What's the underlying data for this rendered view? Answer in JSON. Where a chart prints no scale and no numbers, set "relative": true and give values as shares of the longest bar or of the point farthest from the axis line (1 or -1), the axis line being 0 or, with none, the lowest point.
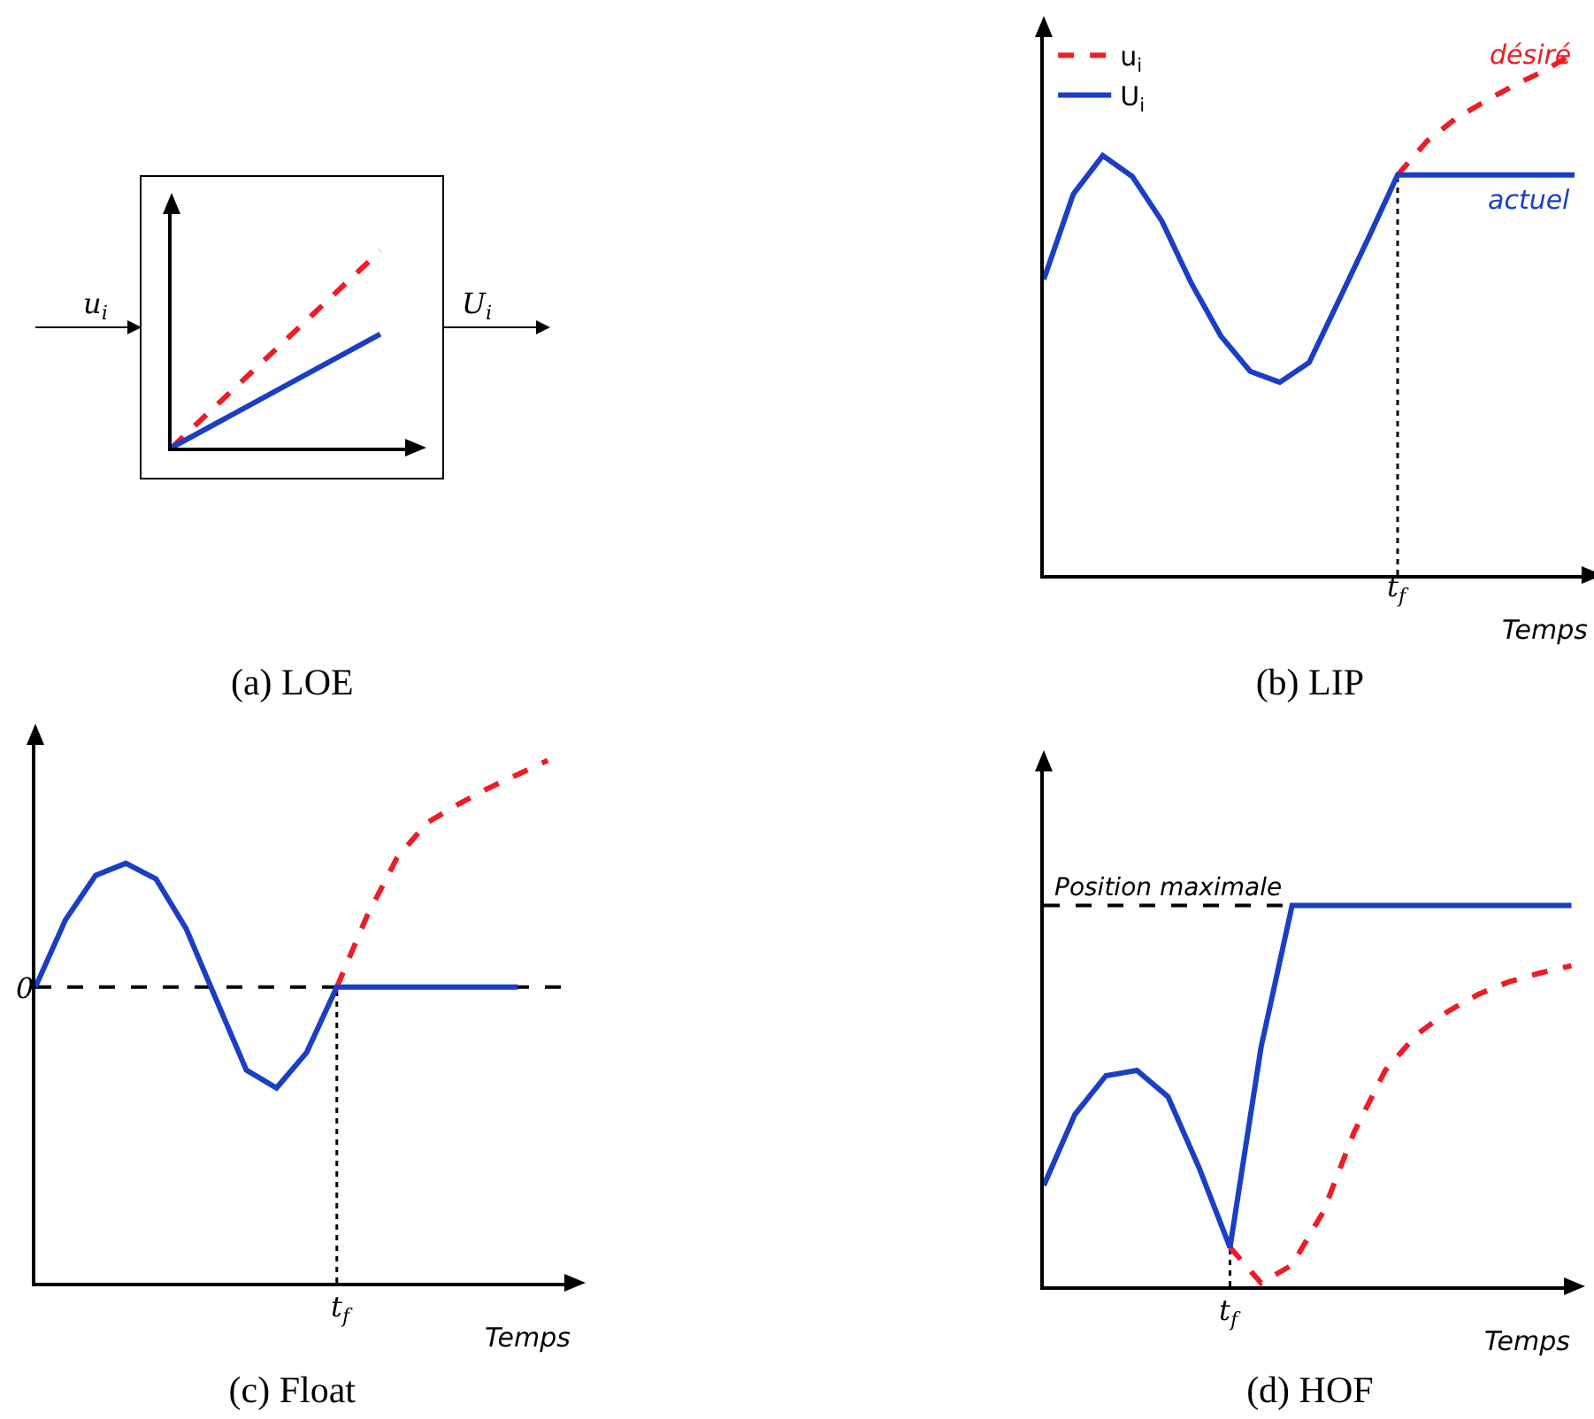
{
  "chart_data": [
    {
      "type": "line",
      "title": "(a) LOE",
      "relative": true,
      "categories": [
        null,
        null
      ],
      "annotations": [
        "u$_{i}$",
        "U$_{i}$"
      ],
      "series": [
        {
          "color": "#ee1c25",
          "line_style": "dashed",
          "values": [
            0,
            1
          ]
        },
        {
          "color": "#1a3fc4",
          "line_style": "solid",
          "values": [
            0,
            0.577
          ]
        }
      ]
    },
    {
      "type": "line",
      "title": "(b) LIP",
      "relative": true,
      "xlabel": "Temps",
      "legend": "top left",
      "categories": [
        null,
        null,
        null,
        null,
        null,
        null,
        null,
        null,
        null,
        null,
        null,
        null,
        null,
        null,
        null,
        null,
        null,
        null,
        null
      ],
      "annotations": [
        {
          "text": "désiré",
          "y": 0.95
        },
        {
          "text": "actuel",
          "y": 0.766
        },
        "t$_{f}$"
      ],
      "series": [
        {
          "name": "u$_{i}$",
          "color": "#ee1c25",
          "line_style": "dashed",
          "values": [
            null,
            null,
            null,
            null,
            null,
            null,
            null,
            null,
            null,
            null,
            null,
            null,
            0.766,
            0.831,
            0.875,
            0.908,
            0.939,
            0.966,
            1
          ]
        },
        {
          "name": "U$_{i}$",
          "color": "#1a3fc4",
          "line_style": "solid",
          "values": [
            0.566,
            0.729,
            0.803,
            0.763,
            0.678,
            0.559,
            0.458,
            0.39,
            0.369,
            0.407,
            0.525,
            0.644,
            0.766,
            0.766,
            0.766,
            0.766,
            0.766,
            0.766,
            0.766
          ]
        }
      ]
    },
    {
      "type": "line",
      "title": "(c) Float",
      "relative": true,
      "xlabel": "Temps",
      "categories": [
        null,
        null,
        null,
        null,
        null,
        null,
        null,
        null,
        null,
        null,
        null,
        null,
        null,
        null,
        null,
        null,
        null,
        null
      ],
      "annotations": [
        "0",
        "t$_{f}$"
      ],
      "ref_lines": [
        {
          "axis": "y",
          "value": 0.566,
          "line_style": "dashed",
          "color": "#000000"
        }
      ],
      "series": [
        {
          "color": "#ee1c25",
          "line_style": "dashed",
          "values": [
            null,
            null,
            null,
            null,
            null,
            null,
            null,
            null,
            null,
            null,
            0.566,
            0.702,
            0.814,
            0.881,
            0.915,
            0.946,
            0.973,
            1
          ]
        },
        {
          "color": "#1a3fc4",
          "line_style": "solid",
          "values": [
            0.566,
            0.695,
            0.78,
            0.803,
            0.773,
            0.678,
            0.542,
            0.407,
            0.373,
            0.441,
            0.566,
            0.566,
            0.566,
            0.566,
            0.566,
            0.566,
            0.566,
            null
          ]
        }
      ]
    },
    {
      "type": "line",
      "title": "(d) HOF",
      "relative": true,
      "xlabel": "Temps",
      "categories": [
        null,
        null,
        null,
        null,
        null,
        null,
        null,
        null,
        null,
        null,
        null,
        null,
        null,
        null,
        null,
        null,
        null,
        null
      ],
      "annotations": [
        "t$_{f}$"
      ],
      "ref_lines": [
        {
          "axis": "y",
          "value": 1,
          "label": "Position maximale",
          "line_style": "dashed",
          "color": "#000000"
        }
      ],
      "series": [
        {
          "color": "#ee1c25",
          "line_style": "dashed",
          "values": [
            null,
            null,
            null,
            null,
            null,
            null,
            0.102,
            0.009,
            0.056,
            0.195,
            0.405,
            0.567,
            0.66,
            0.721,
            0.767,
            0.8,
            0.823,
            0.842
          ]
        },
        {
          "color": "#1a3fc4",
          "line_style": "solid",
          "values": [
            0.265,
            0.451,
            0.553,
            0.567,
            0.498,
            0.312,
            0.102,
            0.628,
            1,
            1,
            1,
            1,
            1,
            1,
            1,
            1,
            1,
            1
          ]
        }
      ]
    }
  ]
}
